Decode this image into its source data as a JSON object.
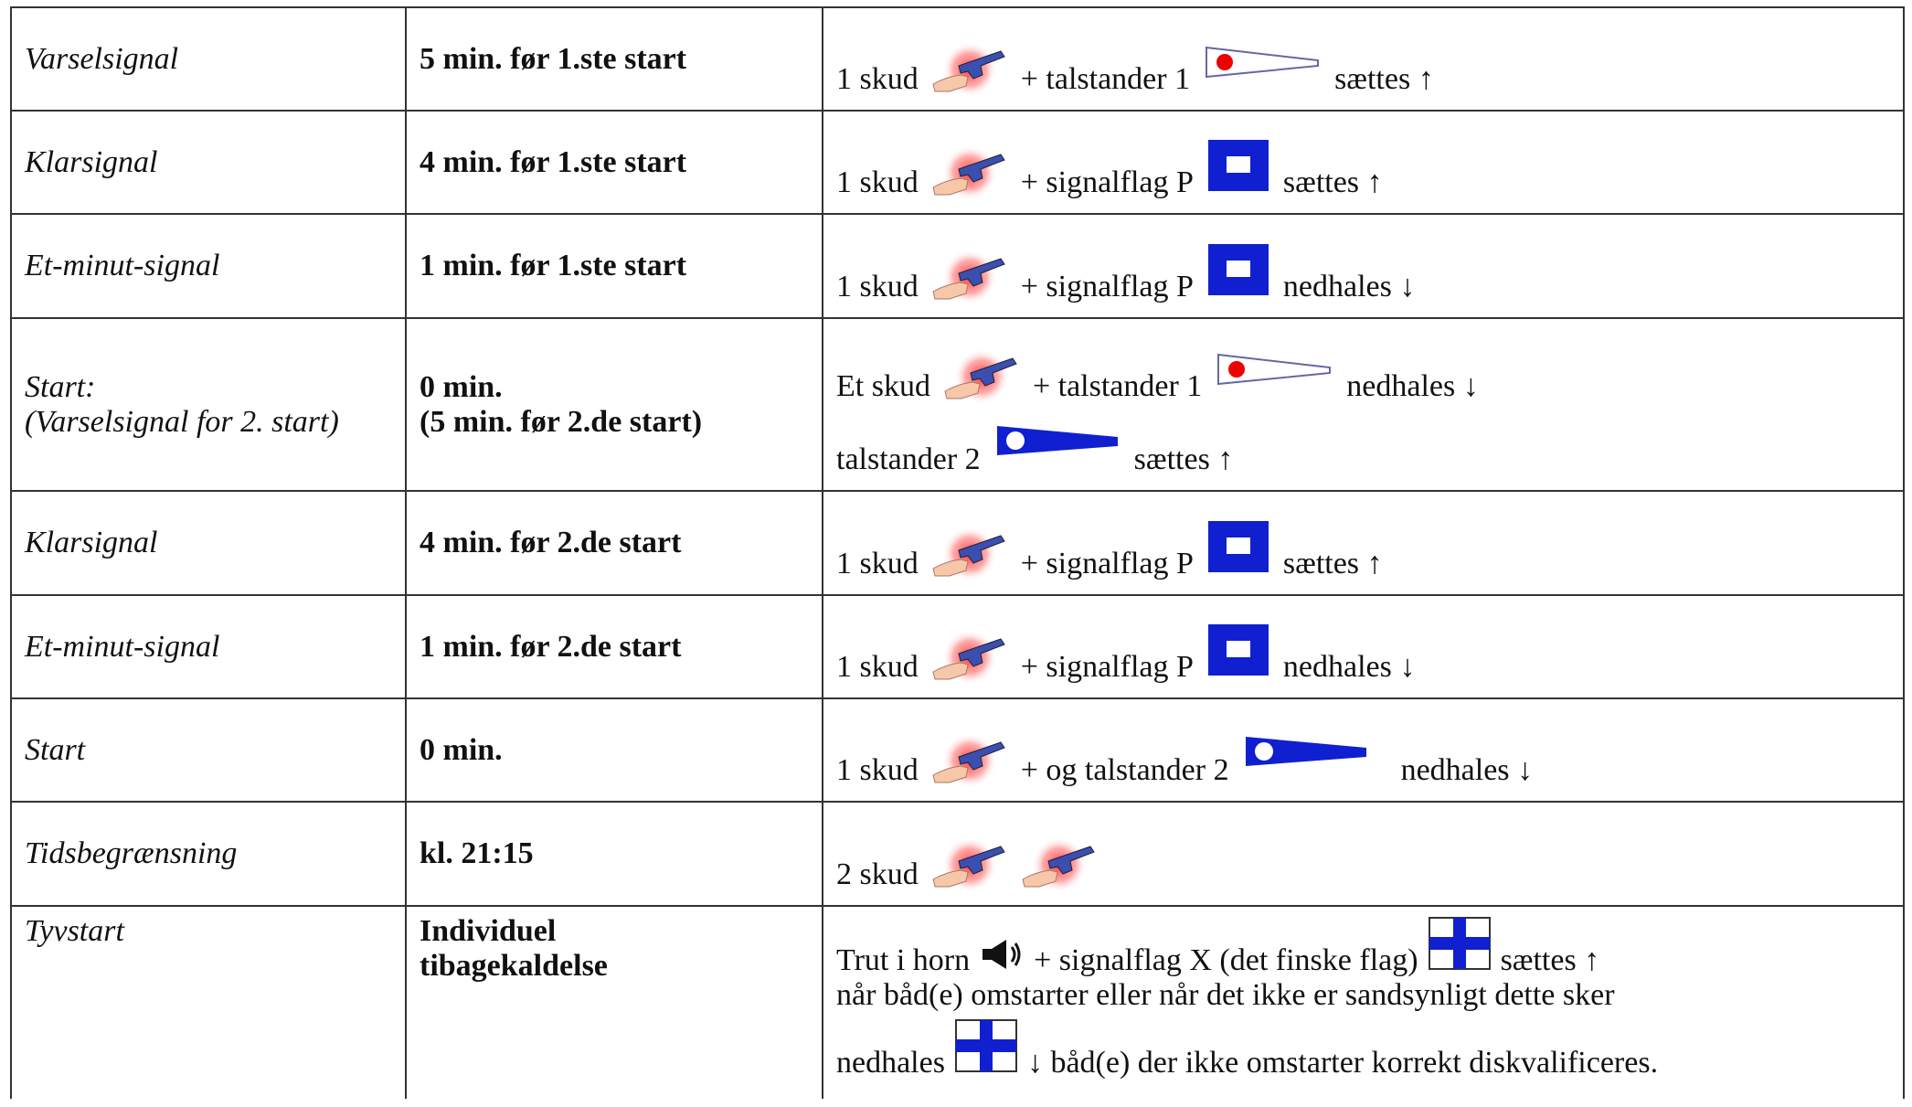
{
  "table": {
    "rows": [
      {
        "label": "Varselsignal",
        "time": "5 min. før 1.ste start",
        "signal": [
          "1 skud",
          "+ talstander 1",
          "sættes ↑"
        ]
      },
      {
        "label": "Klarsignal",
        "time": "4 min. før 1.ste start",
        "signal": [
          "1 skud",
          "+ signalflag P",
          "sættes ↑"
        ]
      },
      {
        "label": "Et-minut-signal",
        "time": "1 min. før 1.ste start",
        "signal": [
          "1 skud",
          "+ signalflag P",
          "nedhales ↓"
        ]
      },
      {
        "label": [
          "Start:",
          "(Varselsignal for 2. start)"
        ],
        "time": [
          "0 min.",
          "(5 min. før 2.de start)"
        ],
        "signal": [
          "Et skud",
          "+ talstander 1",
          "nedhales ↓",
          "talstander 2",
          "sættes ↑"
        ]
      },
      {
        "label": "Klarsignal",
        "time": "4 min. før 2.de start",
        "signal": [
          "1 skud",
          "+ signalflag P",
          "sættes ↑"
        ]
      },
      {
        "label": "Et-minut-signal",
        "time": "1 min. før 2.de start",
        "signal": [
          "1 skud",
          "+ signalflag P",
          "nedhales ↓"
        ]
      },
      {
        "label": "Start",
        "time": "0 min.",
        "signal": [
          "1 skud",
          "+ og talstander 2",
          "nedhales ↓"
        ]
      },
      {
        "label": "Tidsbegrænsning",
        "time": "kl. 21:15",
        "signal": [
          "2 skud"
        ]
      },
      {
        "label": "Tyvstart",
        "time": [
          "Individuel",
          "tibagekaldelse"
        ],
        "signal": [
          "Trut i horn",
          "+ signalflag X (det finske flag)",
          "sættes ↑",
          "når båd(e) omstarter eller når det ikke er sandsynligt dette sker",
          "nedhales",
          "↓  båd(e) der ikke omstarter korrekt diskvalificeres."
        ]
      }
    ]
  }
}
